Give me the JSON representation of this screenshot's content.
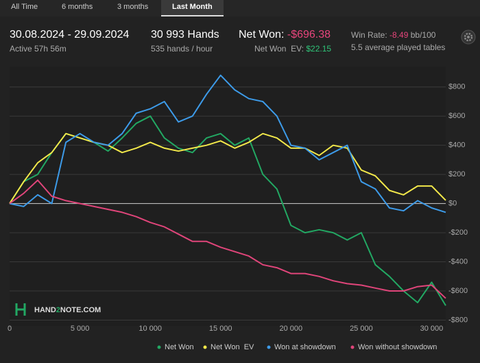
{
  "tabs": [
    {
      "label": "All Time"
    },
    {
      "label": "6 months"
    },
    {
      "label": "3 months"
    },
    {
      "label": "Last Month",
      "active": true
    }
  ],
  "stats": {
    "date_range": "30.08.2024 - 29.09.2024",
    "active_time": "Active 57h 56m",
    "hands": "30 993 Hands",
    "hands_per_hour": "535 hands / hour",
    "net_won_label": "Net Won:",
    "net_won": "-$696.38",
    "net_won_ev_label": "Net Won  EV:",
    "net_won_ev": "$22.15",
    "win_rate_label": "Win Rate:",
    "win_rate": "-8.49",
    "win_rate_unit": "bb/100",
    "tables": "5.5 average played tables"
  },
  "logo": [
    "HAND",
    "2",
    "NOTE.COM"
  ],
  "chart_data": {
    "type": "line",
    "x": [
      0,
      1000,
      2000,
      3000,
      4000,
      5000,
      6000,
      7000,
      8000,
      9000,
      10000,
      11000,
      12000,
      13000,
      14000,
      15000,
      16000,
      17000,
      18000,
      19000,
      20000,
      21000,
      22000,
      23000,
      24000,
      25000,
      26000,
      27000,
      28000,
      29000,
      30000,
      31000
    ],
    "series": [
      {
        "name": "Net Won",
        "color": "#22a863",
        "values": [
          0,
          150,
          200,
          350,
          480,
          450,
          420,
          360,
          450,
          550,
          600,
          450,
          380,
          350,
          450,
          480,
          400,
          450,
          200,
          100,
          -150,
          -200,
          -180,
          -200,
          -250,
          -200,
          -420,
          -500,
          -600,
          -680,
          -540,
          -700
        ]
      },
      {
        "name": "Net Won  EV",
        "color": "#f2e84a",
        "values": [
          0,
          150,
          280,
          350,
          480,
          450,
          420,
          400,
          350,
          380,
          420,
          380,
          360,
          380,
          400,
          430,
          380,
          420,
          480,
          450,
          380,
          380,
          330,
          400,
          380,
          230,
          190,
          90,
          60,
          120,
          120,
          22
        ]
      },
      {
        "name": "Won at showdown",
        "color": "#3d9be9",
        "values": [
          0,
          -20,
          60,
          0,
          420,
          480,
          420,
          400,
          480,
          620,
          650,
          700,
          560,
          600,
          750,
          880,
          780,
          720,
          700,
          600,
          400,
          380,
          300,
          350,
          400,
          150,
          100,
          -30,
          -50,
          20,
          -30,
          -60
        ]
      },
      {
        "name": "Won without showdown",
        "color": "#e0457a",
        "values": [
          0,
          70,
          160,
          50,
          20,
          0,
          -20,
          -40,
          -60,
          -90,
          -130,
          -160,
          -210,
          -260,
          -260,
          -300,
          -330,
          -360,
          -420,
          -440,
          -480,
          -480,
          -500,
          -530,
          -550,
          -560,
          -580,
          -600,
          -600,
          -570,
          -560,
          -650
        ]
      }
    ],
    "xlim": [
      0,
      31000
    ],
    "xticks": [
      0,
      {
        "value": 5000,
        "label": "5 000"
      },
      {
        "value": 10000,
        "label": "10 000"
      },
      {
        "value": 15000,
        "label": "15 000"
      },
      {
        "value": 20000,
        "label": "20 000"
      },
      {
        "value": 25000,
        "label": "25 000"
      },
      {
        "value": 30000,
        "label": "30 000"
      }
    ],
    "ylim": [
      -840,
      940
    ],
    "yticks": [
      {
        "value": 800,
        "label": "$800"
      },
      {
        "value": 600,
        "label": "$600"
      },
      {
        "value": 400,
        "label": "$400"
      },
      {
        "value": 200,
        "label": "$200"
      },
      {
        "value": 0,
        "label": "$0"
      },
      {
        "value": -200,
        "label": "-$200"
      },
      {
        "value": -400,
        "label": "-$400"
      },
      {
        "value": -600,
        "label": "-$600"
      },
      {
        "value": -800,
        "label": "-$800"
      }
    ],
    "grid": true,
    "legend": "bottom"
  }
}
